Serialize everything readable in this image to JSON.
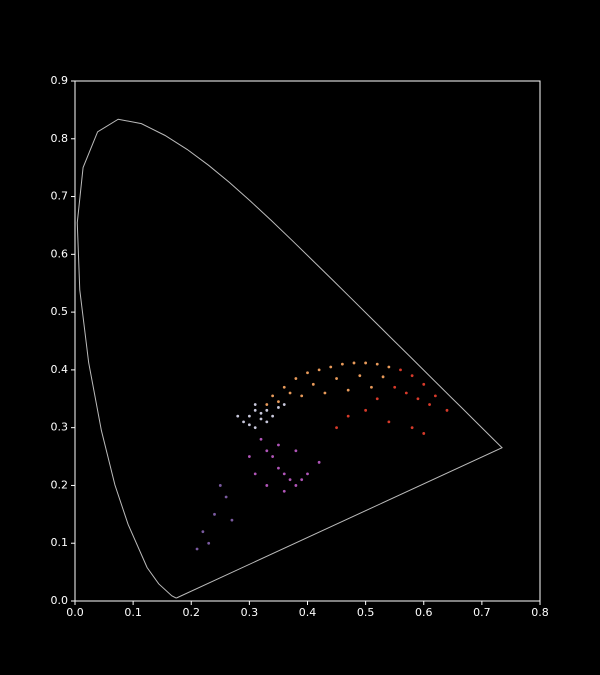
{
  "chart_data": {
    "type": "scatter",
    "xlim": [
      0,
      0.8
    ],
    "ylim": [
      0,
      0.9
    ],
    "xticks": [
      {
        "value": 0,
        "label": "0.0"
      },
      0.1,
      0.2,
      0.3,
      0.4,
      0.5,
      0.6,
      0.7,
      0.8
    ],
    "yticks": [
      {
        "value": 0,
        "label": "0.0"
      },
      0.1,
      0.2,
      0.3,
      0.4,
      0.5,
      0.6,
      0.7,
      0.8,
      0.9
    ],
    "locus": {
      "color": "#bbbbbb",
      "x": [
        0.1741,
        0.1666,
        0.144,
        0.1241,
        0.0913,
        0.0687,
        0.0454,
        0.0235,
        0.0082,
        0.0039,
        0.0139,
        0.0389,
        0.0743,
        0.1142,
        0.1547,
        0.1929,
        0.2296,
        0.2658,
        0.3016,
        0.3373,
        0.3731,
        0.4087,
        0.4441,
        0.4788,
        0.5125,
        0.5448,
        0.5752,
        0.6029,
        0.627,
        0.6482,
        0.6658,
        0.6915,
        0.7347,
        0.1741
      ],
      "y": [
        0.005,
        0.0089,
        0.0297,
        0.0578,
        0.1327,
        0.2007,
        0.295,
        0.4127,
        0.5384,
        0.6548,
        0.7502,
        0.812,
        0.8338,
        0.8262,
        0.8059,
        0.7816,
        0.7543,
        0.7243,
        0.6923,
        0.6589,
        0.6245,
        0.5896,
        0.5547,
        0.5202,
        0.4866,
        0.4544,
        0.4242,
        0.3965,
        0.3725,
        0.3514,
        0.334,
        0.3083,
        0.2653,
        0.005
      ]
    },
    "series": [
      {
        "color": "#e89a5a",
        "x": [
          0.34,
          0.36,
          0.38,
          0.4,
          0.42,
          0.44,
          0.46,
          0.48,
          0.5,
          0.52,
          0.54,
          0.37,
          0.41,
          0.45,
          0.49,
          0.53,
          0.35,
          0.39,
          0.43,
          0.47,
          0.51,
          0.33
        ],
        "y": [
          0.355,
          0.37,
          0.385,
          0.395,
          0.4,
          0.405,
          0.41,
          0.412,
          0.412,
          0.41,
          0.405,
          0.36,
          0.375,
          0.385,
          0.39,
          0.388,
          0.345,
          0.355,
          0.36,
          0.365,
          0.37,
          0.34
        ]
      },
      {
        "color": "#d83a2a",
        "x": [
          0.56,
          0.58,
          0.6,
          0.62,
          0.64,
          0.55,
          0.57,
          0.59,
          0.61,
          0.52,
          0.5,
          0.47,
          0.45,
          0.54,
          0.58,
          0.6
        ],
        "y": [
          0.4,
          0.39,
          0.375,
          0.355,
          0.33,
          0.37,
          0.36,
          0.35,
          0.34,
          0.35,
          0.33,
          0.32,
          0.3,
          0.31,
          0.3,
          0.29
        ]
      },
      {
        "color": "#b055b8",
        "x": [
          0.32,
          0.33,
          0.34,
          0.35,
          0.36,
          0.37,
          0.38,
          0.4,
          0.42,
          0.3,
          0.31,
          0.33,
          0.36,
          0.39,
          0.35,
          0.38
        ],
        "y": [
          0.28,
          0.26,
          0.25,
          0.23,
          0.22,
          0.21,
          0.2,
          0.22,
          0.24,
          0.25,
          0.22,
          0.2,
          0.19,
          0.21,
          0.27,
          0.26
        ]
      },
      {
        "color": "#c8c8dc",
        "x": [
          0.29,
          0.3,
          0.31,
          0.32,
          0.33,
          0.3,
          0.31,
          0.32,
          0.34,
          0.35,
          0.36,
          0.28,
          0.31,
          0.33
        ],
        "y": [
          0.31,
          0.32,
          0.33,
          0.325,
          0.33,
          0.305,
          0.3,
          0.315,
          0.32,
          0.335,
          0.34,
          0.32,
          0.34,
          0.31
        ]
      },
      {
        "color": "#7a5aa0",
        "x": [
          0.22,
          0.24,
          0.26,
          0.23,
          0.21,
          0.27,
          0.25
        ],
        "y": [
          0.12,
          0.15,
          0.18,
          0.1,
          0.09,
          0.14,
          0.2
        ]
      }
    ]
  }
}
